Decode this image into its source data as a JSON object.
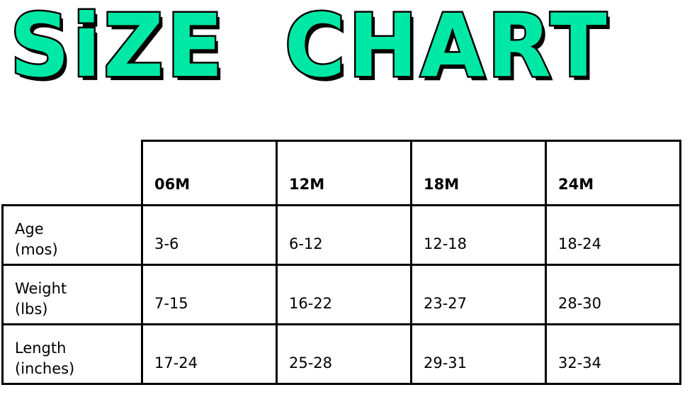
{
  "title": "SiZE CHART",
  "colors": {
    "title_fill": "#00e8a6",
    "outline": "#000000"
  },
  "table": {
    "columns": [
      "06M",
      "12M",
      "18M",
      "24M"
    ],
    "rows": [
      {
        "label": "Age",
        "unit": "(mos)",
        "values": [
          "3-6",
          "6-12",
          "12-18",
          "18-24"
        ]
      },
      {
        "label": "Weight",
        "unit": "(lbs)",
        "values": [
          "7-15",
          "16-22",
          "23-27",
          "28-30"
        ]
      },
      {
        "label": "Length",
        "unit": "(inches)",
        "values": [
          "17-24",
          "25-28",
          "29-31",
          "32-34"
        ]
      }
    ]
  }
}
